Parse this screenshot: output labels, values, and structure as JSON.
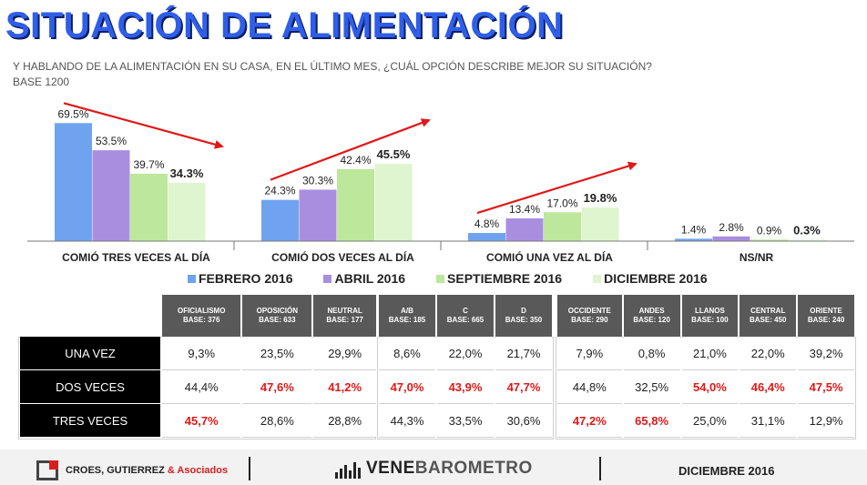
{
  "title": "SITUACIÓN DE ALIMENTACIÓN",
  "subtitle": "Y HABLANDO DE LA ALIMENTACIÓN EN SU CASA,  EN EL ÚLTIMO MES, ¿CUÁL OPCIÓN DESCRIBE MEJOR SU SITUACIÓN?",
  "base": "BASE 1200",
  "chart_data": {
    "type": "bar",
    "categories": [
      "COMIÓ TRES VECES  AL DÍA",
      "COMIÓ DOS VECES  AL DÍA",
      "COMIÓ UNA VEZ AL DÍA",
      "NS/NR"
    ],
    "series": [
      {
        "name": "FEBRERO 2016",
        "color": "#6fa3f0",
        "values": [
          69.5,
          24.3,
          4.8,
          1.4
        ],
        "labels": [
          "69.5%",
          "24.3%",
          "4.8%",
          "1.4%"
        ]
      },
      {
        "name": "ABRIL 2016",
        "color": "#a98ee0",
        "values": [
          53.5,
          30.3,
          13.4,
          2.8
        ],
        "labels": [
          "53.5%",
          "30.3%",
          "13.4%",
          "2.8%"
        ]
      },
      {
        "name": "SEPTIEMBRE 2016",
        "color": "#bde79a",
        "values": [
          39.7,
          42.4,
          17.0,
          0.9
        ],
        "labels": [
          "39.7%",
          "42.4%",
          "17.0%",
          "0.9%"
        ]
      },
      {
        "name": "DICIEMBRE 2016",
        "color": "#def5cf",
        "values": [
          34.3,
          45.5,
          19.8,
          0.3
        ],
        "labels": [
          "34.3%",
          "45.5%",
          "19.8%",
          "0.3%"
        ]
      }
    ],
    "ylim": [
      0,
      75
    ],
    "grid": false,
    "legend": "bottom",
    "trend_arrows": [
      "down",
      "up",
      "up",
      "none"
    ],
    "arrow_color": "#e01818"
  },
  "table": {
    "groups": [
      {
        "headers": [
          {
            "name": "OFICIALISMO",
            "base": "BASE: 376"
          },
          {
            "name": "OPOSICIÓN",
            "base": "BASE: 633"
          },
          {
            "name": "NEUTRAL",
            "base": "BASE: 177"
          }
        ],
        "rows": [
          {
            "cells": [
              {
                "v": "9,3%",
                "hl": false
              },
              {
                "v": "23,5%",
                "hl": false
              },
              {
                "v": "29,9%",
                "hl": false
              }
            ]
          },
          {
            "cells": [
              {
                "v": "44,4%",
                "hl": false
              },
              {
                "v": "47,6%",
                "hl": true
              },
              {
                "v": "41,2%",
                "hl": true
              }
            ]
          },
          {
            "cells": [
              {
                "v": "45,7%",
                "hl": true
              },
              {
                "v": "28,6%",
                "hl": false
              },
              {
                "v": "28,8%",
                "hl": false
              }
            ]
          }
        ]
      },
      {
        "headers": [
          {
            "name": "A/B",
            "base": "BASE: 185"
          },
          {
            "name": "C",
            "base": "BASE: 665"
          },
          {
            "name": "D",
            "base": "BASE: 350"
          }
        ],
        "rows": [
          {
            "cells": [
              {
                "v": "8,6%",
                "hl": false
              },
              {
                "v": "22,0%",
                "hl": false
              },
              {
                "v": "21,7%",
                "hl": false
              }
            ]
          },
          {
            "cells": [
              {
                "v": "47,0%",
                "hl": true
              },
              {
                "v": "43,9%",
                "hl": true
              },
              {
                "v": "47,7%",
                "hl": true
              }
            ]
          },
          {
            "cells": [
              {
                "v": "44,3%",
                "hl": false
              },
              {
                "v": "33,5%",
                "hl": false
              },
              {
                "v": "30,6%",
                "hl": false
              }
            ]
          }
        ]
      },
      {
        "headers": [
          {
            "name": "OCCIDENTE",
            "base": "BASE: 290"
          },
          {
            "name": "ANDES",
            "base": "BASE: 120"
          },
          {
            "name": "LLANOS",
            "base": "BASE: 100"
          },
          {
            "name": "CENTRAL",
            "base": "BASE: 450"
          },
          {
            "name": "ORIENTE",
            "base": "BASE: 240"
          }
        ],
        "rows": [
          {
            "cells": [
              {
                "v": "7,9%",
                "hl": false
              },
              {
                "v": "0,8%",
                "hl": false
              },
              {
                "v": "21,0%",
                "hl": false
              },
              {
                "v": "22,0%",
                "hl": false
              },
              {
                "v": "39,2%",
                "hl": false
              }
            ]
          },
          {
            "cells": [
              {
                "v": "44,8%",
                "hl": false
              },
              {
                "v": "32,5%",
                "hl": false
              },
              {
                "v": "54,0%",
                "hl": true
              },
              {
                "v": "46,4%",
                "hl": true
              },
              {
                "v": "47,5%",
                "hl": true
              }
            ]
          },
          {
            "cells": [
              {
                "v": "47,2%",
                "hl": true
              },
              {
                "v": "65,8%",
                "hl": true
              },
              {
                "v": "25,0%",
                "hl": false
              },
              {
                "v": "31,1%",
                "hl": false
              },
              {
                "v": "12,9%",
                "hl": false
              }
            ]
          }
        ]
      }
    ],
    "row_labels": [
      "UNA VEZ",
      "DOS VECES",
      "TRES VECES"
    ],
    "highlight_color": "#e01818"
  },
  "footer": {
    "company_main": "CROES, GUTIERREZ ",
    "company_amp": "& Asociados",
    "brand_a": "VENE",
    "brand_b": "BAROMETRO",
    "date": "DICIEMBRE 2016"
  }
}
